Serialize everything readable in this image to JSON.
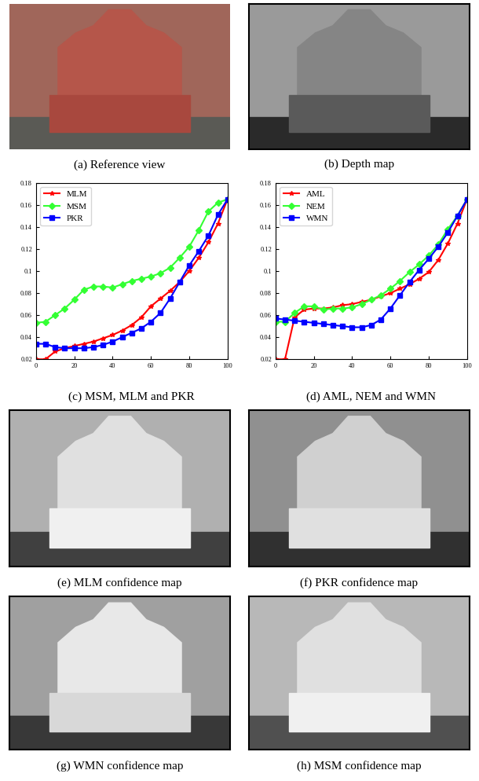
{
  "chart_data": [
    {
      "type": "line",
      "caption": "(c) MSM, MLM and PKR",
      "x": [
        0,
        5,
        10,
        15,
        20,
        25,
        30,
        35,
        40,
        45,
        50,
        55,
        60,
        65,
        70,
        75,
        80,
        85,
        90,
        95,
        100
      ],
      "xlim": [
        0,
        100
      ],
      "xticks": [
        0,
        20,
        40,
        60,
        80,
        100
      ],
      "ylim": [
        0.02,
        0.18
      ],
      "yticks": [
        0.02,
        0.04,
        0.06,
        0.08,
        0.1,
        0.12,
        0.14,
        0.16,
        0.18
      ],
      "grid": false,
      "legend": "upper left",
      "series": [
        {
          "name": "MLM",
          "color": "#ff0000",
          "marker": "star",
          "values": [
            0.02,
            0.02,
            0.027,
            0.03,
            0.032,
            0.034,
            0.036,
            0.039,
            0.042,
            0.046,
            0.051,
            0.058,
            0.068,
            0.075,
            0.082,
            0.09,
            0.1,
            0.112,
            0.126,
            0.143,
            0.165
          ]
        },
        {
          "name": "MSM",
          "color": "#33ff33",
          "marker": "diamond",
          "values": [
            0.053,
            0.054,
            0.06,
            0.066,
            0.074,
            0.083,
            0.086,
            0.086,
            0.085,
            0.088,
            0.091,
            0.093,
            0.095,
            0.098,
            0.103,
            0.112,
            0.122,
            0.137,
            0.154,
            0.162,
            0.165
          ]
        },
        {
          "name": "PKR",
          "color": "#0000ff",
          "marker": "square",
          "values": [
            0.034,
            0.034,
            0.031,
            0.03,
            0.03,
            0.03,
            0.031,
            0.033,
            0.036,
            0.04,
            0.044,
            0.048,
            0.054,
            0.062,
            0.075,
            0.09,
            0.105,
            0.118,
            0.132,
            0.151,
            0.165
          ]
        }
      ]
    },
    {
      "type": "line",
      "caption": "(d) AML, NEM and WMN",
      "x": [
        0,
        5,
        10,
        15,
        20,
        25,
        30,
        35,
        40,
        45,
        50,
        55,
        60,
        65,
        70,
        75,
        80,
        85,
        90,
        95,
        100
      ],
      "xlim": [
        0,
        100
      ],
      "xticks": [
        0,
        20,
        40,
        60,
        80,
        100
      ],
      "ylim": [
        0.02,
        0.18
      ],
      "yticks": [
        0.02,
        0.04,
        0.06,
        0.08,
        0.1,
        0.12,
        0.14,
        0.16,
        0.18
      ],
      "grid": false,
      "legend": "upper left",
      "series": [
        {
          "name": "AML",
          "color": "#ff0000",
          "marker": "star",
          "values": [
            0.02,
            0.02,
            0.058,
            0.065,
            0.066,
            0.066,
            0.067,
            0.069,
            0.07,
            0.072,
            0.074,
            0.077,
            0.08,
            0.084,
            0.088,
            0.093,
            0.099,
            0.11,
            0.125,
            0.143,
            0.165
          ]
        },
        {
          "name": "NEM",
          "color": "#33ff33",
          "marker": "diamond",
          "values": [
            0.054,
            0.054,
            0.062,
            0.068,
            0.068,
            0.065,
            0.066,
            0.066,
            0.067,
            0.07,
            0.074,
            0.078,
            0.084,
            0.091,
            0.099,
            0.106,
            0.114,
            0.124,
            0.138,
            0.15,
            0.165
          ]
        },
        {
          "name": "WMN",
          "color": "#0000ff",
          "marker": "square",
          "values": [
            0.057,
            0.056,
            0.055,
            0.054,
            0.053,
            0.052,
            0.051,
            0.05,
            0.049,
            0.049,
            0.051,
            0.056,
            0.066,
            0.078,
            0.09,
            0.101,
            0.111,
            0.122,
            0.135,
            0.15,
            0.165
          ]
        }
      ]
    }
  ],
  "image_panels": [
    {
      "caption": "(a) Reference view"
    },
    {
      "caption": "(b) Depth map"
    },
    {
      "caption": "(e) MLM confidence map"
    },
    {
      "caption": "(f) PKR confidence map"
    },
    {
      "caption": "(g) WMN confidence map"
    },
    {
      "caption": "(h) MSM confidence map"
    }
  ]
}
